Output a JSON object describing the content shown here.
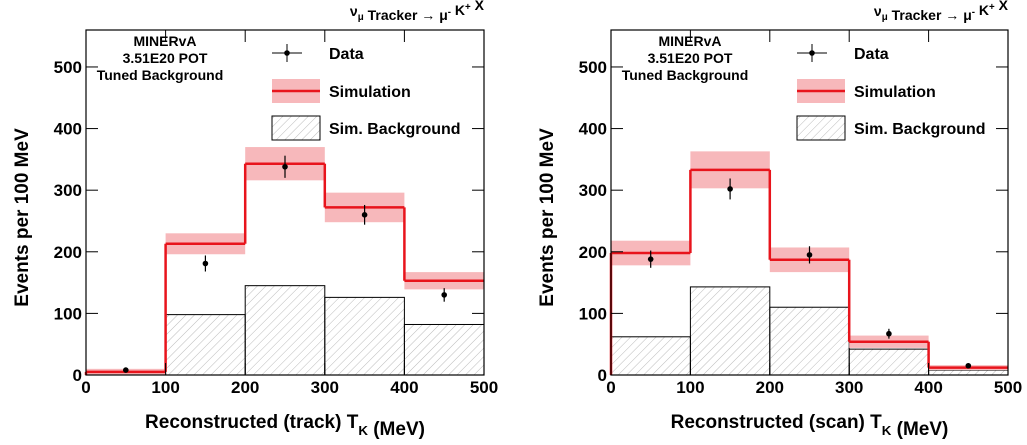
{
  "chart_data": [
    {
      "type": "histogram",
      "title": [
        "ν",
        "μ",
        " Tracker → μ",
        "-",
        " K",
        "+",
        " X"
      ],
      "annotations": [
        "MINERvA",
        "3.51E20 POT",
        "Tuned Background"
      ],
      "xlabel": [
        "Reconstructed (track) T",
        "K",
        " (MeV)"
      ],
      "ylabel": "Events per 100 MeV",
      "bins": [
        0,
        100,
        200,
        300,
        400,
        500
      ],
      "xlim": [
        0,
        500
      ],
      "ylim": [
        0,
        560
      ],
      "xticks": [
        0,
        100,
        200,
        300,
        400,
        500
      ],
      "yticks": [
        0,
        100,
        200,
        300,
        400,
        500
      ],
      "series": [
        {
          "name": "Data",
          "color": "#000000",
          "values": [
            8,
            181,
            338,
            260,
            130
          ],
          "errors": [
            3,
            13,
            18,
            16,
            11
          ]
        },
        {
          "name": "Simulation",
          "color": "#e8141c",
          "band_color": "#f7b8bb",
          "values": [
            5,
            213,
            343,
            272,
            153
          ],
          "errors": [
            5,
            17,
            27,
            24,
            14
          ]
        },
        {
          "name": "Sim. Background",
          "color": "#000000",
          "values": [
            2,
            98,
            145,
            126,
            82
          ]
        }
      ]
    },
    {
      "type": "histogram",
      "title": [
        "ν",
        "μ",
        " Tracker → μ",
        "-",
        " K",
        "+",
        " X"
      ],
      "annotations": [
        "MINERvA",
        "3.51E20 POT",
        "Tuned Background"
      ],
      "xlabel": [
        "Reconstructed (scan) T",
        "K",
        " (MeV)"
      ],
      "ylabel": "Events per 100 MeV",
      "bins": [
        0,
        100,
        200,
        300,
        400,
        500
      ],
      "xlim": [
        0,
        500
      ],
      "ylim": [
        0,
        560
      ],
      "xticks": [
        0,
        100,
        200,
        300,
        400,
        500
      ],
      "yticks": [
        0,
        100,
        200,
        300,
        400,
        500
      ],
      "series": [
        {
          "name": "Data",
          "color": "#000000",
          "values": [
            188,
            302,
            195,
            67,
            15
          ],
          "errors": [
            14,
            17,
            14,
            8,
            4
          ]
        },
        {
          "name": "Simulation",
          "color": "#e8141c",
          "band_color": "#f7b8bb",
          "values": [
            198,
            333,
            187,
            54,
            12
          ],
          "errors": [
            20,
            30,
            20,
            10,
            4
          ]
        },
        {
          "name": "Sim. Background",
          "color": "#000000",
          "values": [
            62,
            143,
            110,
            42,
            8
          ]
        }
      ]
    }
  ]
}
